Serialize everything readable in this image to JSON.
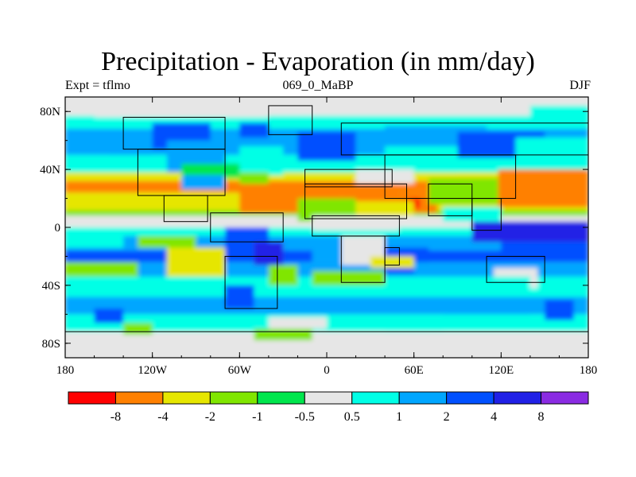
{
  "title": "Precipitation - Evaporation (in mm/day)",
  "subtitle_left": "Expt = tflmo",
  "subtitle_center": "069_0_MaBP",
  "subtitle_right": "DJF",
  "axes": {
    "x_ticks": [
      {
        "lon": -180,
        "label": "180"
      },
      {
        "lon": -120,
        "label": "120W"
      },
      {
        "lon": -60,
        "label": "60W"
      },
      {
        "lon": 0,
        "label": "0"
      },
      {
        "lon": 60,
        "label": "60E"
      },
      {
        "lon": 120,
        "label": "120E"
      },
      {
        "lon": 180,
        "label": "180"
      }
    ],
    "y_ticks": [
      {
        "lat": 80,
        "label": "80N"
      },
      {
        "lat": 40,
        "label": "40N"
      },
      {
        "lat": 0,
        "label": "0"
      },
      {
        "lat": -40,
        "label": "40S"
      },
      {
        "lat": -80,
        "label": "80S"
      }
    ],
    "lon_range": [
      -180,
      180
    ],
    "lat_range": [
      -90,
      90
    ]
  },
  "colorbar": {
    "colors": [
      "#ff0000",
      "#ff8000",
      "#e6e600",
      "#80e600",
      "#00e64d",
      "#e6e6e6",
      "#00ffe6",
      "#00a6ff",
      "#0050ff",
      "#2020e6",
      "#8a2be2"
    ],
    "labels": [
      "-8",
      "-4",
      "-2",
      "-1",
      "-0.5",
      "0.5",
      "1",
      "2",
      "4",
      "8"
    ]
  },
  "regions": [
    {
      "lon": -180,
      "lat": 90,
      "w": 360,
      "h": 13,
      "c": 5
    },
    {
      "lon": -180,
      "lat": 77,
      "w": 360,
      "h": 9,
      "c": 6
    },
    {
      "lon": -180,
      "lat": 68,
      "w": 360,
      "h": 18,
      "c": 7
    },
    {
      "lon": -180,
      "lat": 50,
      "w": 360,
      "h": 12,
      "c": 6
    },
    {
      "lon": -180,
      "lat": 38,
      "w": 360,
      "h": 6,
      "c": 2
    },
    {
      "lon": -180,
      "lat": 32,
      "w": 360,
      "h": 8,
      "c": 1
    },
    {
      "lon": -180,
      "lat": 24,
      "w": 360,
      "h": 12,
      "c": 2
    },
    {
      "lon": -180,
      "lat": 12,
      "w": 360,
      "h": 4,
      "c": 3
    },
    {
      "lon": -180,
      "lat": 8,
      "w": 360,
      "h": 8,
      "c": 5
    },
    {
      "lon": -180,
      "lat": 0,
      "w": 360,
      "h": 6,
      "c": 6
    },
    {
      "lon": -180,
      "lat": -6,
      "w": 360,
      "h": 10,
      "c": 7
    },
    {
      "lon": -180,
      "lat": -16,
      "w": 360,
      "h": 8,
      "c": 8
    },
    {
      "lon": -180,
      "lat": -24,
      "w": 360,
      "h": 10,
      "c": 7
    },
    {
      "lon": -180,
      "lat": -34,
      "w": 360,
      "h": 14,
      "c": 6
    },
    {
      "lon": -180,
      "lat": -48,
      "w": 360,
      "h": 12,
      "c": 7
    },
    {
      "lon": -180,
      "lat": -60,
      "w": 360,
      "h": 12,
      "c": 6
    },
    {
      "lon": -180,
      "lat": -72,
      "w": 360,
      "h": 18,
      "c": 5
    },
    {
      "lon": -160,
      "lat": 86,
      "w": 120,
      "h": 10,
      "c": 5
    },
    {
      "lon": 60,
      "lat": 86,
      "w": 80,
      "h": 8,
      "c": 5
    },
    {
      "lon": -120,
      "lat": 72,
      "w": 40,
      "h": 18,
      "c": 8
    },
    {
      "lon": -110,
      "lat": 60,
      "w": 40,
      "h": 22,
      "c": 7
    },
    {
      "lon": -60,
      "lat": 72,
      "w": 20,
      "h": 10,
      "c": 8
    },
    {
      "lon": -20,
      "lat": 66,
      "w": 40,
      "h": 20,
      "c": 8
    },
    {
      "lon": 40,
      "lat": 70,
      "w": 70,
      "h": 18,
      "c": 7
    },
    {
      "lon": 90,
      "lat": 66,
      "w": 60,
      "h": 18,
      "c": 8
    },
    {
      "lon": 130,
      "lat": 62,
      "w": 50,
      "h": 14,
      "c": 6
    },
    {
      "lon": 140,
      "lat": 84,
      "w": 40,
      "h": 12,
      "c": 6
    },
    {
      "lon": -100,
      "lat": 44,
      "w": 40,
      "h": 10,
      "c": 4
    },
    {
      "lon": -150,
      "lat": 60,
      "w": 30,
      "h": 10,
      "c": 7
    },
    {
      "lon": -60,
      "lat": 56,
      "w": 30,
      "h": 20,
      "c": 6
    },
    {
      "lon": 40,
      "lat": 56,
      "w": 50,
      "h": 18,
      "c": 6
    },
    {
      "lon": -100,
      "lat": 36,
      "w": 30,
      "h": 10,
      "c": 7
    },
    {
      "lon": -60,
      "lat": 38,
      "w": 20,
      "h": 8,
      "c": 3
    },
    {
      "lon": 20,
      "lat": 40,
      "w": 40,
      "h": 10,
      "c": 5
    },
    {
      "lon": -60,
      "lat": 30,
      "w": 70,
      "h": 20,
      "c": 1
    },
    {
      "lon": 10,
      "lat": 30,
      "w": 40,
      "h": 12,
      "c": 1
    },
    {
      "lon": 50,
      "lat": 24,
      "w": 26,
      "h": 14,
      "c": 1
    },
    {
      "lon": 56,
      "lat": 20,
      "w": 8,
      "h": 7,
      "c": 0
    },
    {
      "lon": 70,
      "lat": 34,
      "w": 50,
      "h": 18,
      "c": 3
    },
    {
      "lon": 118,
      "lat": 40,
      "w": 62,
      "h": 26,
      "c": 1
    },
    {
      "lon": -20,
      "lat": 20,
      "w": 40,
      "h": 16,
      "c": 3
    },
    {
      "lon": 20,
      "lat": 18,
      "w": 40,
      "h": 10,
      "c": 2
    },
    {
      "lon": -10,
      "lat": 8,
      "w": 60,
      "h": 10,
      "c": 5
    },
    {
      "lon": 80,
      "lat": 14,
      "w": 40,
      "h": 10,
      "c": 6
    },
    {
      "lon": 100,
      "lat": 4,
      "w": 80,
      "h": 14,
      "c": 9
    },
    {
      "lon": 120,
      "lat": -10,
      "w": 60,
      "h": 12,
      "c": 8
    },
    {
      "lon": -130,
      "lat": -6,
      "w": 40,
      "h": 8,
      "c": 3
    },
    {
      "lon": -180,
      "lat": 0,
      "w": 40,
      "h": 14,
      "c": 6
    },
    {
      "lon": -110,
      "lat": -14,
      "w": 40,
      "h": 20,
      "c": 2
    },
    {
      "lon": -180,
      "lat": -24,
      "w": 50,
      "h": 10,
      "c": 3
    },
    {
      "lon": -70,
      "lat": 0,
      "w": 30,
      "h": 20,
      "c": 8
    },
    {
      "lon": -50,
      "lat": -10,
      "w": 20,
      "h": 16,
      "c": 9
    },
    {
      "lon": -40,
      "lat": -26,
      "w": 20,
      "h": 14,
      "c": 3
    },
    {
      "lon": -10,
      "lat": -10,
      "w": 30,
      "h": 14,
      "c": 7
    },
    {
      "lon": 10,
      "lat": -6,
      "w": 30,
      "h": 20,
      "c": 5
    },
    {
      "lon": 40,
      "lat": -14,
      "w": 30,
      "h": 18,
      "c": 8
    },
    {
      "lon": 30,
      "lat": -20,
      "w": 30,
      "h": 8,
      "c": 2
    },
    {
      "lon": 60,
      "lat": -24,
      "w": 60,
      "h": 10,
      "c": 7
    },
    {
      "lon": 115,
      "lat": -28,
      "w": 30,
      "h": 14,
      "c": 5
    },
    {
      "lon": -10,
      "lat": -30,
      "w": 50,
      "h": 10,
      "c": 3
    },
    {
      "lon": 60,
      "lat": -34,
      "w": 80,
      "h": 10,
      "c": 6
    },
    {
      "lon": -70,
      "lat": -40,
      "w": 20,
      "h": 16,
      "c": 8
    },
    {
      "lon": 80,
      "lat": -50,
      "w": 60,
      "h": 10,
      "c": 7
    },
    {
      "lon": -40,
      "lat": -62,
      "w": 40,
      "h": 8,
      "c": 5
    },
    {
      "lon": -160,
      "lat": -56,
      "w": 20,
      "h": 10,
      "c": 8
    },
    {
      "lon": 150,
      "lat": -50,
      "w": 20,
      "h": 14,
      "c": 8
    },
    {
      "lon": -140,
      "lat": -66,
      "w": 20,
      "h": 8,
      "c": 3
    },
    {
      "lon": -50,
      "lat": -70,
      "w": 40,
      "h": 8,
      "c": 3
    },
    {
      "lon": 40,
      "lat": -66,
      "w": 40,
      "h": 6,
      "c": 6
    }
  ],
  "coast_boxes": [
    {
      "lon": -140,
      "lat": 76,
      "w": 70,
      "h": 22
    },
    {
      "lon": -130,
      "lat": 54,
      "w": 60,
      "h": 32
    },
    {
      "lon": -112,
      "lat": 22,
      "w": 30,
      "h": 18
    },
    {
      "lon": -80,
      "lat": 10,
      "w": 50,
      "h": 20
    },
    {
      "lon": -70,
      "lat": -20,
      "w": 36,
      "h": 36
    },
    {
      "lon": -40,
      "lat": 84,
      "w": 30,
      "h": 20
    },
    {
      "lon": -15,
      "lat": 40,
      "w": 60,
      "h": 12
    },
    {
      "lon": -15,
      "lat": 30,
      "w": 70,
      "h": 24
    },
    {
      "lon": -10,
      "lat": 8,
      "w": 60,
      "h": 14
    },
    {
      "lon": 10,
      "lat": -6,
      "w": 30,
      "h": 32
    },
    {
      "lon": 40,
      "lat": -14,
      "w": 10,
      "h": 12
    },
    {
      "lon": 10,
      "lat": 72,
      "w": 170,
      "h": 22
    },
    {
      "lon": 40,
      "lat": 50,
      "w": 90,
      "h": 30
    },
    {
      "lon": 70,
      "lat": 30,
      "w": 30,
      "h": 22
    },
    {
      "lon": 100,
      "lat": 20,
      "w": 20,
      "h": 22
    },
    {
      "lon": 110,
      "lat": -20,
      "w": 40,
      "h": 18
    },
    {
      "lon": -180,
      "lat": -72,
      "w": 360,
      "h": 18
    }
  ]
}
